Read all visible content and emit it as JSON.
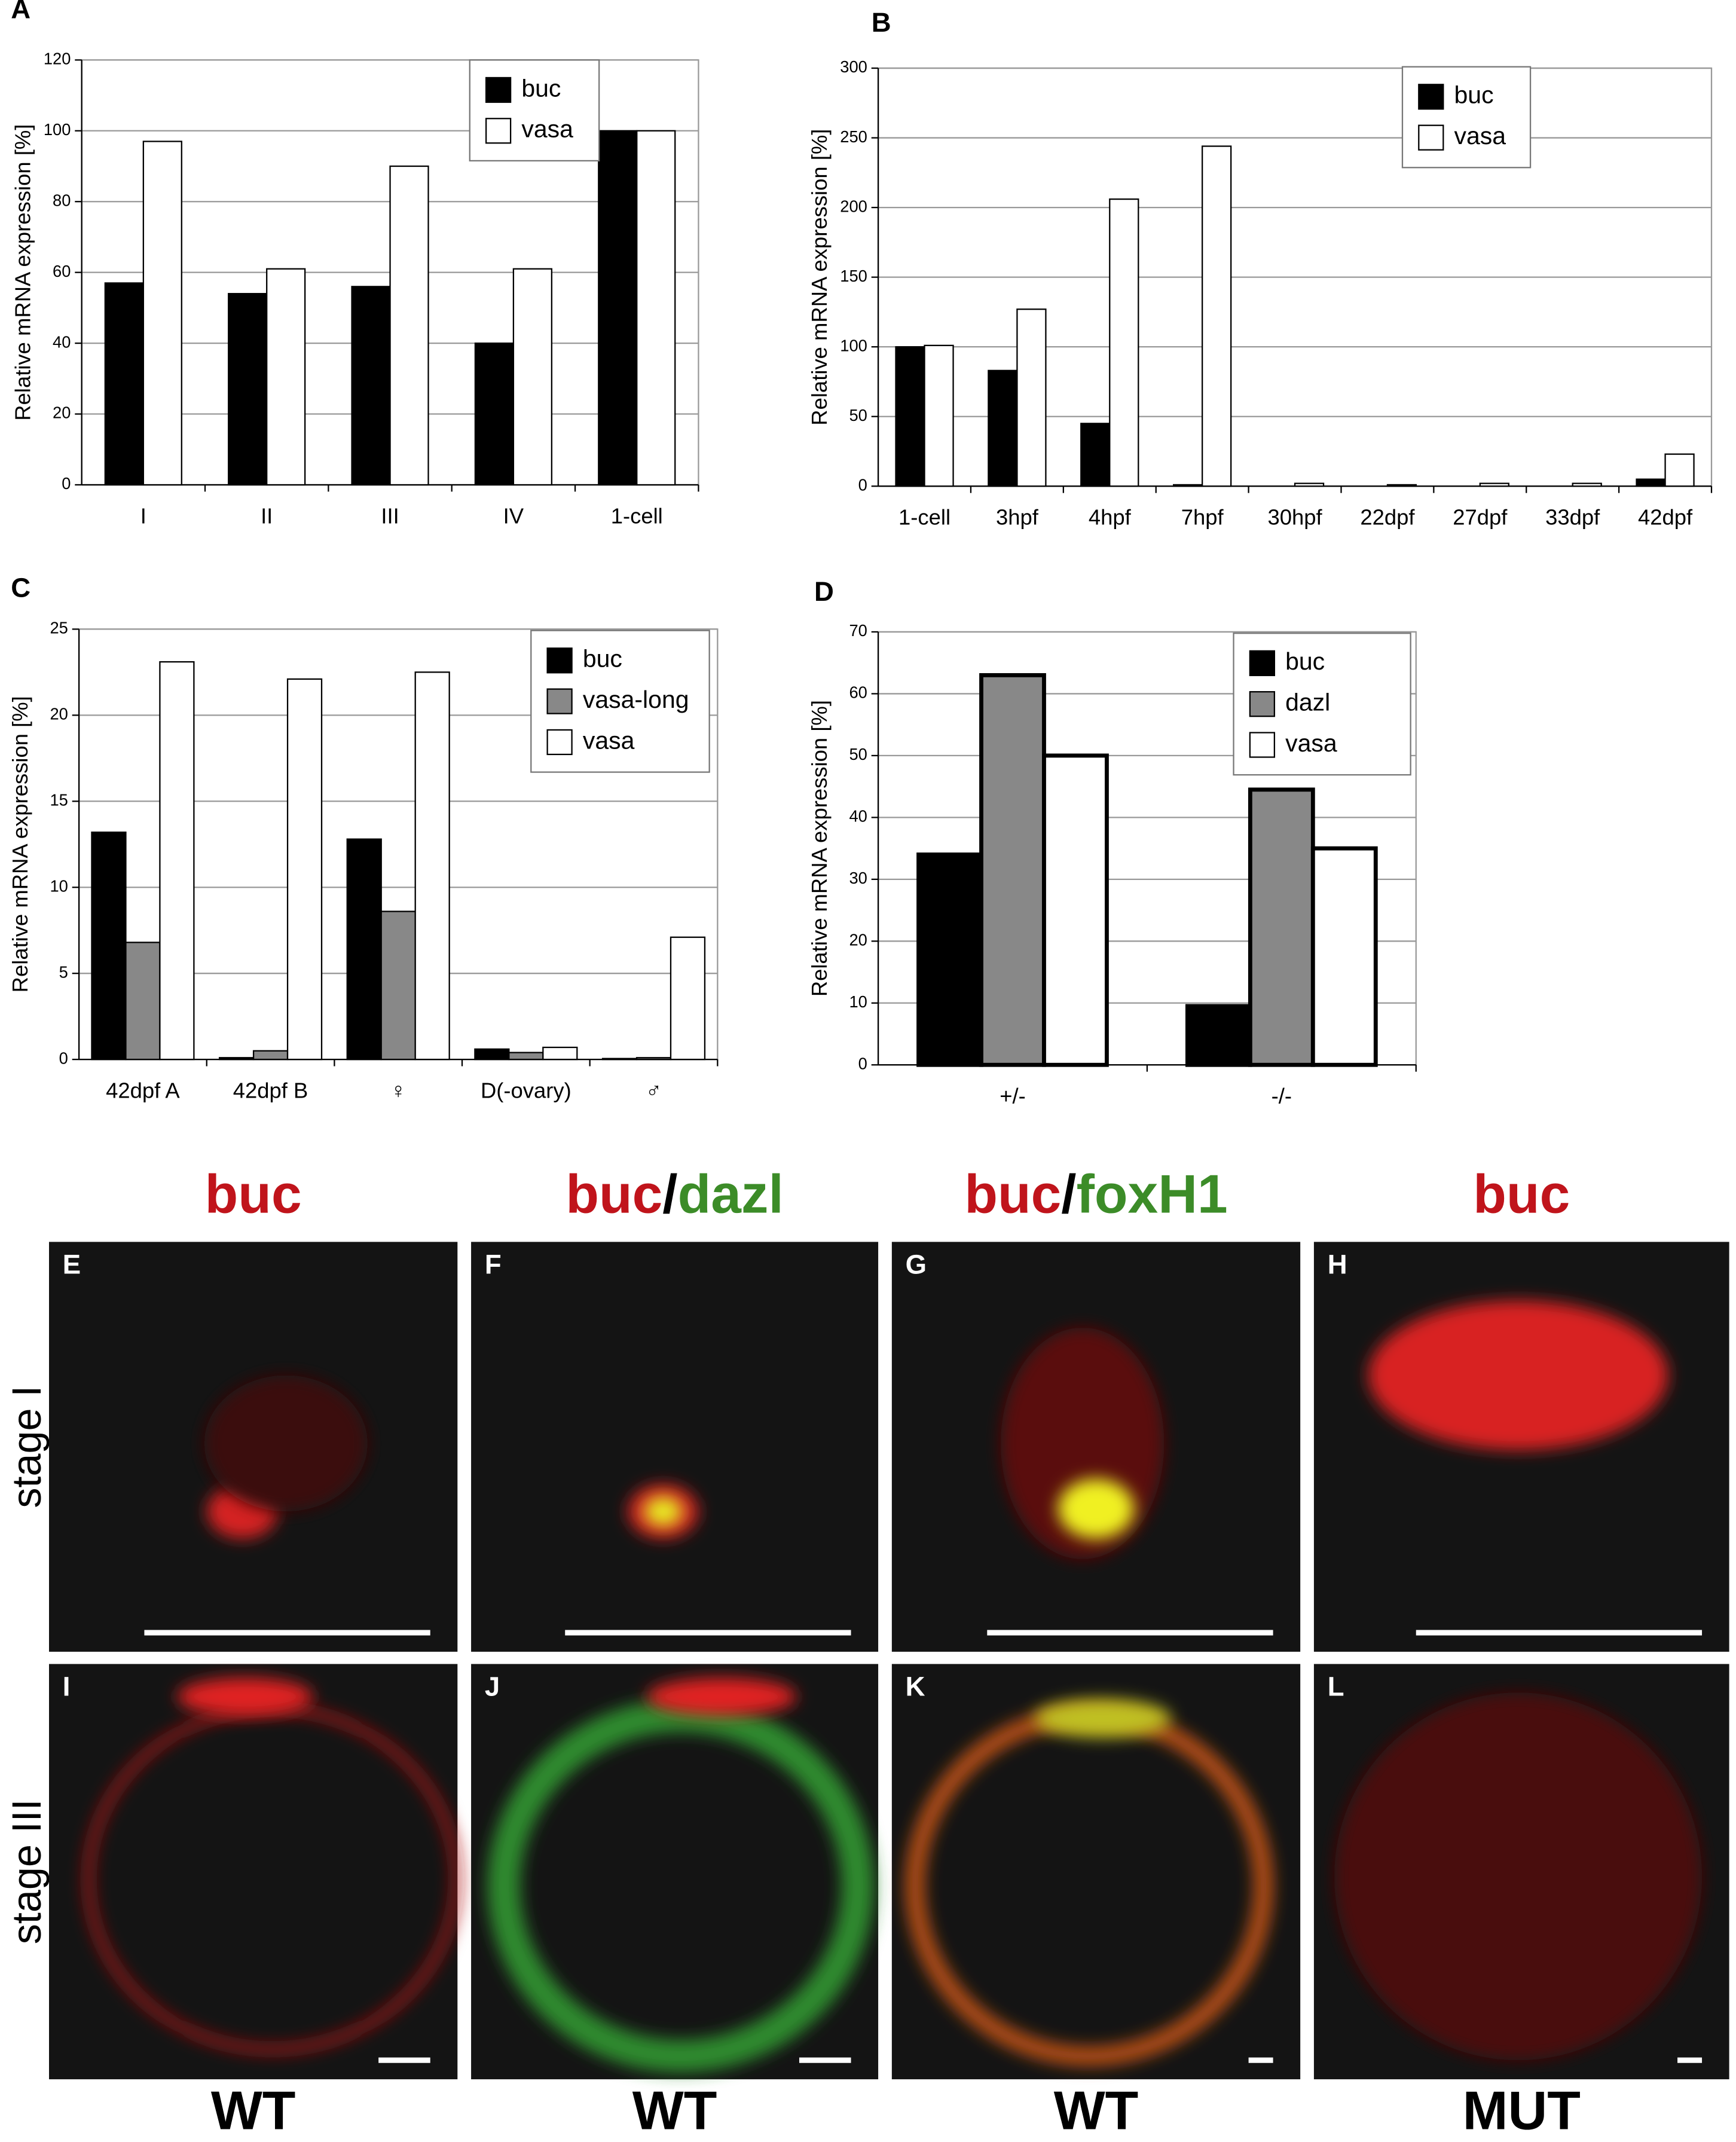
{
  "chart_data": [
    {
      "type": "bar",
      "panel": "A",
      "y_label": "Relative mRNA expression [%]",
      "categories": [
        "I",
        "II",
        "III",
        "IV",
        "1-cell"
      ],
      "series": [
        {
          "name": "buc",
          "color": "#000000",
          "values": [
            57,
            54,
            56,
            40,
            100
          ]
        },
        {
          "name": "vasa",
          "color": "#ffffff",
          "values": [
            97,
            61,
            90,
            61,
            100
          ]
        }
      ],
      "ylim": [
        0,
        120
      ],
      "yticks": [
        0,
        20,
        40,
        60,
        80,
        100,
        120
      ],
      "grid": true,
      "legend": "top-right"
    },
    {
      "type": "bar",
      "panel": "B",
      "y_label": "Relative mRNA expression [%]",
      "categories": [
        "1-cell",
        "3hpf",
        "4hpf",
        "7hpf",
        "30hpf",
        "22dpf",
        "27dpf",
        "33dpf",
        "42dpf"
      ],
      "series": [
        {
          "name": "buc",
          "color": "#000000",
          "values": [
            100,
            83,
            45,
            1,
            0,
            0,
            0,
            0,
            5
          ]
        },
        {
          "name": "vasa",
          "color": "#ffffff",
          "values": [
            101,
            127,
            206,
            244,
            2,
            1,
            2,
            2,
            23
          ]
        }
      ],
      "ylim": [
        0,
        300
      ],
      "yticks": [
        0,
        50,
        100,
        150,
        200,
        250,
        300
      ],
      "grid": true,
      "legend": "top-right"
    },
    {
      "type": "bar",
      "panel": "C",
      "y_label": "Relative mRNA expression [%]",
      "categories": [
        "42dpf A",
        "42dpf B",
        "♀",
        "D(-ovary)",
        "♂"
      ],
      "series": [
        {
          "name": "buc",
          "color": "#000000",
          "values": [
            13.2,
            0.1,
            12.8,
            0.6,
            0.05
          ]
        },
        {
          "name": "vasa-long",
          "color": "#888888",
          "values": [
            6.8,
            0.5,
            8.6,
            0.4,
            0.1
          ]
        },
        {
          "name": "vasa",
          "color": "#ffffff",
          "values": [
            23.1,
            22.1,
            22.5,
            0.7,
            7.1
          ]
        }
      ],
      "ylim": [
        0,
        25
      ],
      "yticks": [
        0,
        5,
        10,
        15,
        20,
        25
      ],
      "grid": true,
      "legend": "top-right"
    },
    {
      "type": "bar",
      "panel": "D",
      "y_label": "Relative mRNA expression [%]",
      "categories": [
        "+/-",
        "-/-"
      ],
      "series": [
        {
          "name": "buc",
          "color": "#000000",
          "values": [
            34,
            9.5
          ]
        },
        {
          "name": "dazl",
          "color": "#888888",
          "values": [
            63,
            44.5
          ]
        },
        {
          "name": "vasa",
          "color": "#ffffff",
          "values": [
            50,
            35
          ]
        }
      ],
      "ylim": [
        0,
        70
      ],
      "yticks": [
        0,
        10,
        20,
        30,
        40,
        50,
        60,
        70
      ],
      "grid": true,
      "legend": "top-right"
    }
  ],
  "micrographs": {
    "headers": [
      [
        {
          "text": "buc",
          "color": "#c0141b"
        }
      ],
      [
        {
          "text": "buc",
          "color": "#c0141b"
        },
        {
          "text": "/",
          "color": "#000000"
        },
        {
          "text": "dazl",
          "color": "#3c8c28"
        }
      ],
      [
        {
          "text": "buc",
          "color": "#c0141b"
        },
        {
          "text": "/",
          "color": "#000000"
        },
        {
          "text": "foxH1",
          "color": "#3c8c28"
        }
      ],
      [
        {
          "text": "buc",
          "color": "#c0141b"
        }
      ]
    ],
    "rows": [
      "stage I",
      "stage III"
    ],
    "panels": [
      "E",
      "F",
      "G",
      "H",
      "I",
      "J",
      "K",
      "L"
    ],
    "genotypes": [
      "WT",
      "WT",
      "WT",
      "MUT"
    ]
  }
}
